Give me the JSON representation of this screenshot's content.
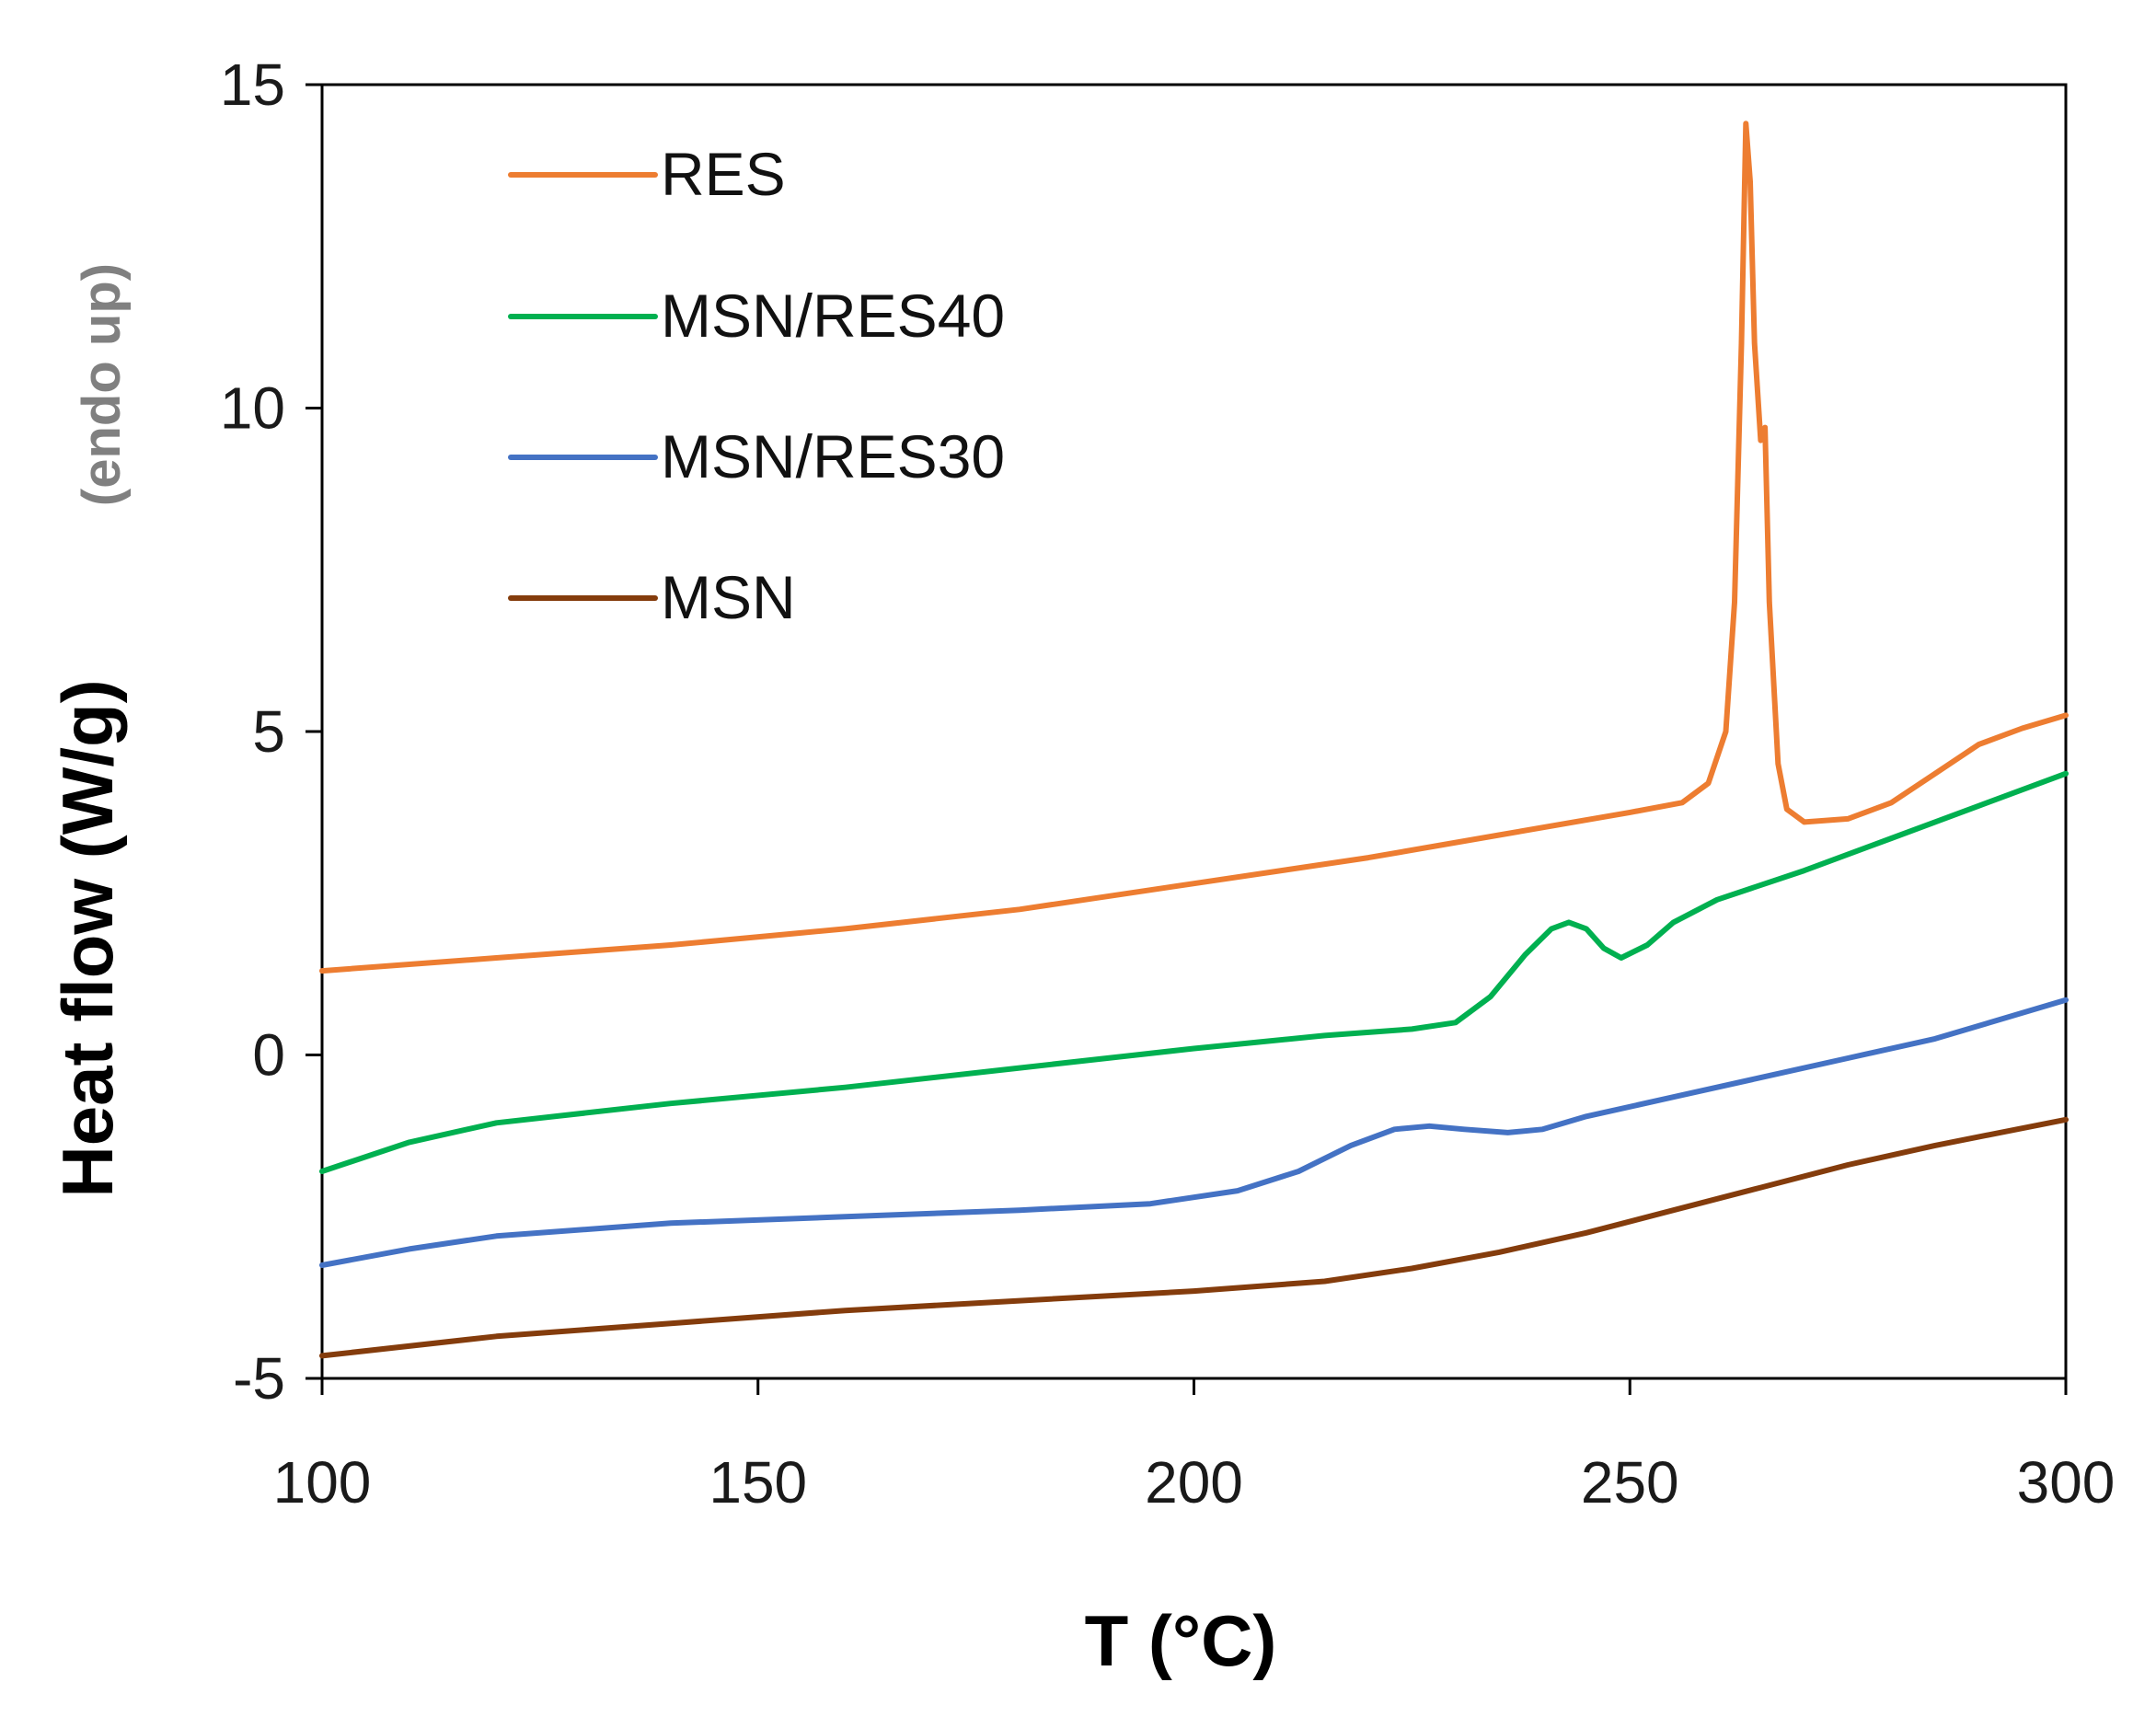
{
  "chart_data": {
    "type": "line",
    "xlabel": "T (°C)",
    "ylabel": "Heat flow (W/g)",
    "ylabel_note": "(endo up)",
    "xlim": [
      100,
      300
    ],
    "ylim": [
      -5,
      15
    ],
    "xticks": [
      100,
      150,
      200,
      250,
      300
    ],
    "yticks": [
      -5,
      0,
      5,
      10,
      15
    ],
    "grid": false,
    "legend_position": "top-left",
    "series": [
      {
        "name": "RES",
        "color": "#ED7D31",
        "points": [
          [
            100,
            1.3
          ],
          [
            120,
            1.5
          ],
          [
            140,
            1.7
          ],
          [
            160,
            1.95
          ],
          [
            180,
            2.25
          ],
          [
            200,
            2.65
          ],
          [
            220,
            3.05
          ],
          [
            235,
            3.4
          ],
          [
            250,
            3.75
          ],
          [
            256,
            3.9
          ],
          [
            259,
            4.2
          ],
          [
            261,
            5.0
          ],
          [
            262,
            7.0
          ],
          [
            262.8,
            11.0
          ],
          [
            263.3,
            14.4
          ],
          [
            263.8,
            13.5
          ],
          [
            264.3,
            11.0
          ],
          [
            265,
            9.5
          ],
          [
            265.5,
            9.7
          ],
          [
            266,
            7.0
          ],
          [
            267,
            4.5
          ],
          [
            268,
            3.8
          ],
          [
            270,
            3.6
          ],
          [
            275,
            3.65
          ],
          [
            280,
            3.9
          ],
          [
            285,
            4.35
          ],
          [
            290,
            4.8
          ],
          [
            295,
            5.05
          ],
          [
            300,
            5.25
          ]
        ]
      },
      {
        "name": "MSN/RES40",
        "color": "#00B050",
        "points": [
          [
            100,
            -1.8
          ],
          [
            110,
            -1.35
          ],
          [
            120,
            -1.05
          ],
          [
            140,
            -0.75
          ],
          [
            160,
            -0.5
          ],
          [
            180,
            -0.2
          ],
          [
            200,
            0.1
          ],
          [
            215,
            0.3
          ],
          [
            225,
            0.4
          ],
          [
            230,
            0.5
          ],
          [
            234,
            0.9
          ],
          [
            238,
            1.55
          ],
          [
            241,
            1.95
          ],
          [
            243,
            2.05
          ],
          [
            245,
            1.95
          ],
          [
            247,
            1.65
          ],
          [
            249,
            1.5
          ],
          [
            252,
            1.7
          ],
          [
            255,
            2.05
          ],
          [
            260,
            2.4
          ],
          [
            270,
            2.85
          ],
          [
            280,
            3.35
          ],
          [
            290,
            3.85
          ],
          [
            300,
            4.35
          ]
        ]
      },
      {
        "name": "MSN/RES30",
        "color": "#4472C4",
        "points": [
          [
            100,
            -3.25
          ],
          [
            110,
            -3.0
          ],
          [
            120,
            -2.8
          ],
          [
            140,
            -2.6
          ],
          [
            160,
            -2.5
          ],
          [
            180,
            -2.4
          ],
          [
            195,
            -2.3
          ],
          [
            205,
            -2.1
          ],
          [
            212,
            -1.8
          ],
          [
            218,
            -1.4
          ],
          [
            223,
            -1.15
          ],
          [
            227,
            -1.1
          ],
          [
            231,
            -1.15
          ],
          [
            236,
            -1.2
          ],
          [
            240,
            -1.15
          ],
          [
            245,
            -0.95
          ],
          [
            255,
            -0.65
          ],
          [
            265,
            -0.35
          ],
          [
            275,
            -0.05
          ],
          [
            285,
            0.25
          ],
          [
            300,
            0.85
          ]
        ]
      },
      {
        "name": "MSN",
        "color": "#843C0C",
        "points": [
          [
            100,
            -4.65
          ],
          [
            120,
            -4.35
          ],
          [
            140,
            -4.15
          ],
          [
            160,
            -3.95
          ],
          [
            180,
            -3.8
          ],
          [
            200,
            -3.65
          ],
          [
            215,
            -3.5
          ],
          [
            225,
            -3.3
          ],
          [
            235,
            -3.05
          ],
          [
            245,
            -2.75
          ],
          [
            255,
            -2.4
          ],
          [
            265,
            -2.05
          ],
          [
            275,
            -1.7
          ],
          [
            285,
            -1.4
          ],
          [
            300,
            -1.0
          ]
        ]
      }
    ]
  }
}
